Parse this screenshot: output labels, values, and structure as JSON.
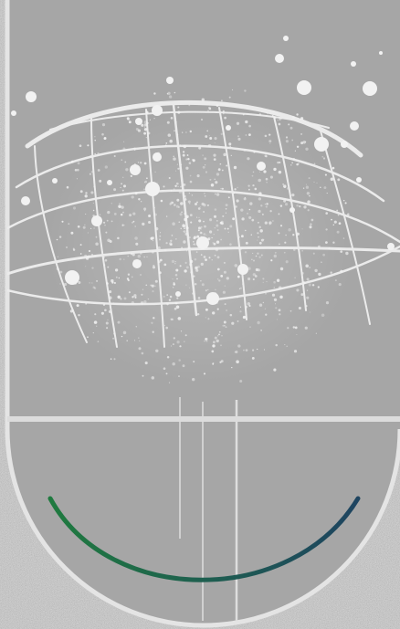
{
  "scene": {
    "subject": "celestial-globe-illustration",
    "colors": {
      "speckle_border": "#d2d2d2",
      "card_fill": "#a6a6a6",
      "card_outline": "#e6e6e6",
      "grid_lines": "#ebebeb",
      "stars": "#f2f2f2",
      "divider": "#dcdcdc",
      "arc_gradient_start": "#1f7a3f",
      "arc_gradient_end": "#1e4460"
    },
    "icons": [
      "globe-grid-icon",
      "star-cluster-icon",
      "smile-arc-icon"
    ]
  }
}
